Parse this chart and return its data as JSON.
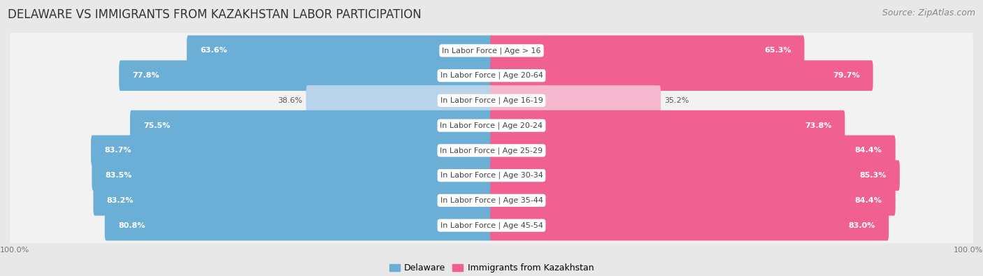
{
  "title": "DELAWARE VS IMMIGRANTS FROM KAZAKHSTAN LABOR PARTICIPATION",
  "source": "Source: ZipAtlas.com",
  "categories": [
    "In Labor Force | Age > 16",
    "In Labor Force | Age 20-64",
    "In Labor Force | Age 16-19",
    "In Labor Force | Age 20-24",
    "In Labor Force | Age 25-29",
    "In Labor Force | Age 30-34",
    "In Labor Force | Age 35-44",
    "In Labor Force | Age 45-54"
  ],
  "delaware_values": [
    63.6,
    77.8,
    38.6,
    75.5,
    83.7,
    83.5,
    83.2,
    80.8
  ],
  "kazakhstan_values": [
    65.3,
    79.7,
    35.2,
    73.8,
    84.4,
    85.3,
    84.4,
    83.0
  ],
  "delaware_color": "#6baed6",
  "delaware_light_color": "#b8d4eb",
  "kazakhstan_color": "#f06090",
  "kazakhstan_light_color": "#f5b8ce",
  "background_color": "#e8e8e8",
  "row_bg_color": "#f2f2f2",
  "max_value": 100.0,
  "title_fontsize": 12,
  "source_fontsize": 9,
  "label_fontsize": 8,
  "value_fontsize": 8,
  "legend_fontsize": 9,
  "axis_fontsize": 8,
  "low_threshold": 50
}
